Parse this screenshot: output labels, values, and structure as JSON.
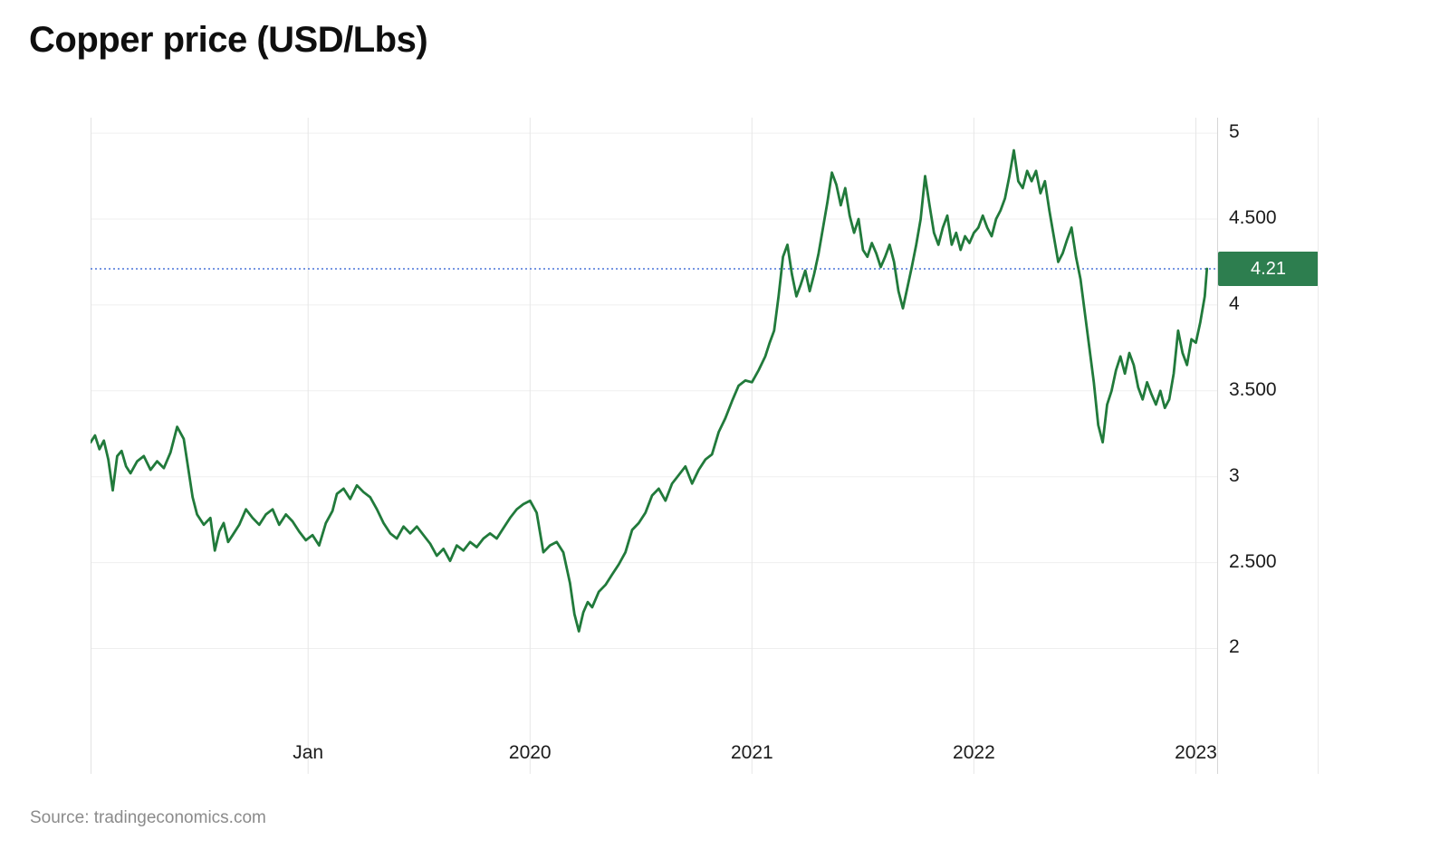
{
  "title": "Copper price (USD/Lbs)",
  "source": "Source: tradingeconomics.com",
  "colors": {
    "line": "#217a3b",
    "badge_bg": "#2d7e4f",
    "badge_text": "#ffffff",
    "ref_line": "#4a74d8",
    "grid_horizontal": "#efefef",
    "grid_vertical": "#e7e7e7",
    "axis_border": "#d6d6d6",
    "plot_left_border": "#e3e3e3",
    "text": "#1b1b1b",
    "muted_text": "#8b8b8b"
  },
  "chart_data": {
    "type": "line",
    "title": "Copper price (USD/Lbs)",
    "unit": "USD/Lbs",
    "grid": true,
    "legend_position": "none",
    "axis": {
      "x_left": 2018.02,
      "x_right": 2023.1,
      "y_top": 5.09,
      "y_bottom": 1.27
    },
    "x_ticks": [
      {
        "t": 2019,
        "label": "Jan"
      },
      {
        "t": 2020,
        "label": "2020"
      },
      {
        "t": 2021,
        "label": "2021"
      },
      {
        "t": 2022,
        "label": "2022"
      },
      {
        "t": 2023,
        "label": "2023"
      }
    ],
    "y_ticks": [
      {
        "v": 5,
        "label": "5"
      },
      {
        "v": 4.5,
        "label": "4.500"
      },
      {
        "v": 4,
        "label": "4"
      },
      {
        "v": 3.5,
        "label": "3.500"
      },
      {
        "v": 3,
        "label": "3"
      },
      {
        "v": 2.5,
        "label": "2.500"
      },
      {
        "v": 2,
        "label": "2"
      }
    ],
    "reference_line": {
      "value": 4.21,
      "label": "4.21"
    },
    "series": [
      {
        "name": "Copper price",
        "points": [
          [
            2018.02,
            3.2
          ],
          [
            2018.04,
            3.24
          ],
          [
            2018.06,
            3.16
          ],
          [
            2018.08,
            3.21
          ],
          [
            2018.1,
            3.1
          ],
          [
            2018.12,
            2.92
          ],
          [
            2018.14,
            3.12
          ],
          [
            2018.16,
            3.15
          ],
          [
            2018.18,
            3.06
          ],
          [
            2018.2,
            3.02
          ],
          [
            2018.23,
            3.09
          ],
          [
            2018.26,
            3.12
          ],
          [
            2018.29,
            3.04
          ],
          [
            2018.32,
            3.09
          ],
          [
            2018.35,
            3.05
          ],
          [
            2018.38,
            3.14
          ],
          [
            2018.41,
            3.29
          ],
          [
            2018.44,
            3.22
          ],
          [
            2018.46,
            3.05
          ],
          [
            2018.48,
            2.88
          ],
          [
            2018.5,
            2.78
          ],
          [
            2018.53,
            2.72
          ],
          [
            2018.56,
            2.76
          ],
          [
            2018.58,
            2.57
          ],
          [
            2018.6,
            2.68
          ],
          [
            2018.62,
            2.73
          ],
          [
            2018.64,
            2.62
          ],
          [
            2018.66,
            2.66
          ],
          [
            2018.69,
            2.72
          ],
          [
            2018.72,
            2.81
          ],
          [
            2018.75,
            2.76
          ],
          [
            2018.78,
            2.72
          ],
          [
            2018.81,
            2.78
          ],
          [
            2018.84,
            2.81
          ],
          [
            2018.87,
            2.72
          ],
          [
            2018.9,
            2.78
          ],
          [
            2018.93,
            2.74
          ],
          [
            2018.96,
            2.68
          ],
          [
            2018.99,
            2.63
          ],
          [
            2019.02,
            2.66
          ],
          [
            2019.05,
            2.6
          ],
          [
            2019.08,
            2.73
          ],
          [
            2019.11,
            2.8
          ],
          [
            2019.13,
            2.9
          ],
          [
            2019.16,
            2.93
          ],
          [
            2019.19,
            2.87
          ],
          [
            2019.22,
            2.95
          ],
          [
            2019.25,
            2.91
          ],
          [
            2019.28,
            2.88
          ],
          [
            2019.31,
            2.81
          ],
          [
            2019.34,
            2.73
          ],
          [
            2019.37,
            2.67
          ],
          [
            2019.4,
            2.64
          ],
          [
            2019.43,
            2.71
          ],
          [
            2019.46,
            2.67
          ],
          [
            2019.49,
            2.71
          ],
          [
            2019.52,
            2.66
          ],
          [
            2019.55,
            2.61
          ],
          [
            2019.58,
            2.54
          ],
          [
            2019.61,
            2.58
          ],
          [
            2019.64,
            2.51
          ],
          [
            2019.67,
            2.6
          ],
          [
            2019.7,
            2.57
          ],
          [
            2019.73,
            2.62
          ],
          [
            2019.76,
            2.59
          ],
          [
            2019.79,
            2.64
          ],
          [
            2019.82,
            2.67
          ],
          [
            2019.85,
            2.64
          ],
          [
            2019.88,
            2.7
          ],
          [
            2019.91,
            2.76
          ],
          [
            2019.94,
            2.81
          ],
          [
            2019.97,
            2.84
          ],
          [
            2020.0,
            2.86
          ],
          [
            2020.03,
            2.79
          ],
          [
            2020.06,
            2.56
          ],
          [
            2020.09,
            2.6
          ],
          [
            2020.12,
            2.62
          ],
          [
            2020.15,
            2.56
          ],
          [
            2020.18,
            2.38
          ],
          [
            2020.2,
            2.2
          ],
          [
            2020.22,
            2.1
          ],
          [
            2020.24,
            2.21
          ],
          [
            2020.26,
            2.27
          ],
          [
            2020.28,
            2.24
          ],
          [
            2020.31,
            2.33
          ],
          [
            2020.34,
            2.37
          ],
          [
            2020.37,
            2.43
          ],
          [
            2020.4,
            2.49
          ],
          [
            2020.43,
            2.56
          ],
          [
            2020.46,
            2.69
          ],
          [
            2020.49,
            2.73
          ],
          [
            2020.52,
            2.79
          ],
          [
            2020.55,
            2.89
          ],
          [
            2020.58,
            2.93
          ],
          [
            2020.61,
            2.86
          ],
          [
            2020.64,
            2.96
          ],
          [
            2020.67,
            3.01
          ],
          [
            2020.7,
            3.06
          ],
          [
            2020.73,
            2.96
          ],
          [
            2020.76,
            3.04
          ],
          [
            2020.79,
            3.1
          ],
          [
            2020.82,
            3.13
          ],
          [
            2020.85,
            3.26
          ],
          [
            2020.88,
            3.34
          ],
          [
            2020.91,
            3.44
          ],
          [
            2020.94,
            3.53
          ],
          [
            2020.97,
            3.56
          ],
          [
            2021.0,
            3.55
          ],
          [
            2021.03,
            3.62
          ],
          [
            2021.06,
            3.7
          ],
          [
            2021.08,
            3.78
          ],
          [
            2021.1,
            3.85
          ],
          [
            2021.12,
            4.05
          ],
          [
            2021.14,
            4.28
          ],
          [
            2021.16,
            4.35
          ],
          [
            2021.18,
            4.18
          ],
          [
            2021.2,
            4.05
          ],
          [
            2021.22,
            4.12
          ],
          [
            2021.24,
            4.2
          ],
          [
            2021.26,
            4.08
          ],
          [
            2021.28,
            4.18
          ],
          [
            2021.3,
            4.3
          ],
          [
            2021.32,
            4.45
          ],
          [
            2021.34,
            4.6
          ],
          [
            2021.36,
            4.77
          ],
          [
            2021.38,
            4.7
          ],
          [
            2021.4,
            4.58
          ],
          [
            2021.42,
            4.68
          ],
          [
            2021.44,
            4.52
          ],
          [
            2021.46,
            4.42
          ],
          [
            2021.48,
            4.5
          ],
          [
            2021.5,
            4.32
          ],
          [
            2021.52,
            4.28
          ],
          [
            2021.54,
            4.36
          ],
          [
            2021.56,
            4.3
          ],
          [
            2021.58,
            4.22
          ],
          [
            2021.6,
            4.28
          ],
          [
            2021.62,
            4.35
          ],
          [
            2021.64,
            4.25
          ],
          [
            2021.66,
            4.08
          ],
          [
            2021.68,
            3.98
          ],
          [
            2021.7,
            4.1
          ],
          [
            2021.72,
            4.22
          ],
          [
            2021.74,
            4.35
          ],
          [
            2021.76,
            4.5
          ],
          [
            2021.78,
            4.75
          ],
          [
            2021.8,
            4.58
          ],
          [
            2021.82,
            4.42
          ],
          [
            2021.84,
            4.35
          ],
          [
            2021.86,
            4.45
          ],
          [
            2021.88,
            4.52
          ],
          [
            2021.9,
            4.35
          ],
          [
            2021.92,
            4.42
          ],
          [
            2021.94,
            4.32
          ],
          [
            2021.96,
            4.4
          ],
          [
            2021.98,
            4.36
          ],
          [
            2022.0,
            4.42
          ],
          [
            2022.02,
            4.45
          ],
          [
            2022.04,
            4.52
          ],
          [
            2022.06,
            4.45
          ],
          [
            2022.08,
            4.4
          ],
          [
            2022.1,
            4.5
          ],
          [
            2022.12,
            4.55
          ],
          [
            2022.14,
            4.62
          ],
          [
            2022.16,
            4.75
          ],
          [
            2022.18,
            4.9
          ],
          [
            2022.2,
            4.72
          ],
          [
            2022.22,
            4.68
          ],
          [
            2022.24,
            4.78
          ],
          [
            2022.26,
            4.72
          ],
          [
            2022.28,
            4.78
          ],
          [
            2022.3,
            4.65
          ],
          [
            2022.32,
            4.72
          ],
          [
            2022.34,
            4.55
          ],
          [
            2022.36,
            4.4
          ],
          [
            2022.38,
            4.25
          ],
          [
            2022.4,
            4.3
          ],
          [
            2022.42,
            4.38
          ],
          [
            2022.44,
            4.45
          ],
          [
            2022.46,
            4.28
          ],
          [
            2022.48,
            4.15
          ],
          [
            2022.5,
            3.95
          ],
          [
            2022.52,
            3.75
          ],
          [
            2022.54,
            3.55
          ],
          [
            2022.56,
            3.3
          ],
          [
            2022.58,
            3.2
          ],
          [
            2022.6,
            3.42
          ],
          [
            2022.62,
            3.5
          ],
          [
            2022.64,
            3.62
          ],
          [
            2022.66,
            3.7
          ],
          [
            2022.68,
            3.6
          ],
          [
            2022.7,
            3.72
          ],
          [
            2022.72,
            3.65
          ],
          [
            2022.74,
            3.52
          ],
          [
            2022.76,
            3.45
          ],
          [
            2022.78,
            3.55
          ],
          [
            2022.8,
            3.48
          ],
          [
            2022.82,
            3.42
          ],
          [
            2022.84,
            3.5
          ],
          [
            2022.86,
            3.4
          ],
          [
            2022.88,
            3.45
          ],
          [
            2022.9,
            3.6
          ],
          [
            2022.92,
            3.85
          ],
          [
            2022.94,
            3.72
          ],
          [
            2022.96,
            3.65
          ],
          [
            2022.98,
            3.8
          ],
          [
            2023.0,
            3.78
          ],
          [
            2023.02,
            3.9
          ],
          [
            2023.04,
            4.05
          ],
          [
            2023.05,
            4.21
          ]
        ]
      }
    ]
  }
}
